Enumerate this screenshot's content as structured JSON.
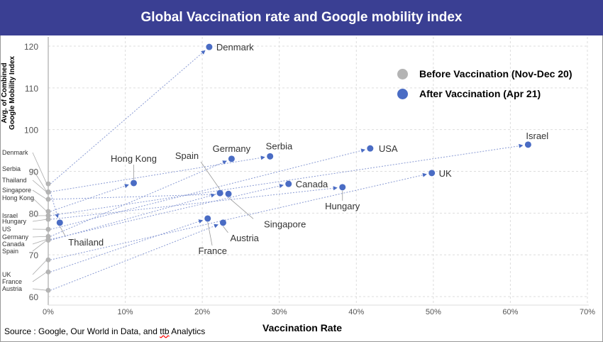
{
  "title": "Global Vaccination rate and Google mobility index",
  "source": {
    "prefix": "Source : Google, Our World in Data, and ",
    "underlined": "ttb",
    "suffix": " Analytics"
  },
  "chart_data": {
    "type": "scatter",
    "title": "Global Vaccination rate and Google mobility index",
    "xlabel": "Vaccination Rate",
    "ylabel": "Avg. of Combined Google Mobility Index",
    "xlim": [
      0,
      70
    ],
    "ylim": [
      60,
      120
    ],
    "x_ticks": [
      "0%",
      "10%",
      "20%",
      "30%",
      "40%",
      "50%",
      "60%",
      "70%"
    ],
    "y_ticks": [
      "60",
      "70",
      "80",
      "90",
      "100",
      "110",
      "120"
    ],
    "grid": true,
    "legend_position": "top-right",
    "series": [
      {
        "name": "Before Vaccination (Nov-Dec 20)",
        "color": "#b4b4b4"
      },
      {
        "name": "After Vaccination (Apr 21)",
        "color": "#4a6cc4"
      }
    ],
    "points": [
      {
        "country": "Denmark",
        "before": 87.0,
        "after_x": 20.9,
        "after_y": 119.8
      },
      {
        "country": "Serbia",
        "before": 85.1,
        "after_x": 28.8,
        "after_y": 93.6
      },
      {
        "country": "Thailand",
        "before": 85.0,
        "after_x": 1.5,
        "after_y": 77.7
      },
      {
        "country": "Singapore",
        "before": 83.3,
        "after_x": 23.4,
        "after_y": 84.6
      },
      {
        "country": "Hong Kong",
        "before": 80.4,
        "after_x": 11.1,
        "after_y": 87.2
      },
      {
        "country": "Israel",
        "before": 79.4,
        "after_x": 62.3,
        "after_y": 96.4
      },
      {
        "country": "Hungary",
        "before": 78.5,
        "after_x": 38.2,
        "after_y": 86.2
      },
      {
        "country": "US",
        "before": 76.1,
        "after_x": 41.8,
        "after_y": 95.5,
        "after_label": "USA"
      },
      {
        "country": "Germany",
        "before": 74.4,
        "after_x": 23.8,
        "after_y": 93.0
      },
      {
        "country": "Canada",
        "before": 73.7,
        "after_x": 31.2,
        "after_y": 87.0
      },
      {
        "country": "Spain",
        "before": 73.5,
        "after_x": 22.3,
        "after_y": 84.8
      },
      {
        "country": "UK",
        "before": 68.8,
        "after_x": 49.8,
        "after_y": 89.6
      },
      {
        "country": "France",
        "before": 65.9,
        "after_x": 20.7,
        "after_y": 78.7
      },
      {
        "country": "Austria",
        "before": 61.5,
        "after_x": 22.7,
        "after_y": 77.7
      }
    ]
  }
}
